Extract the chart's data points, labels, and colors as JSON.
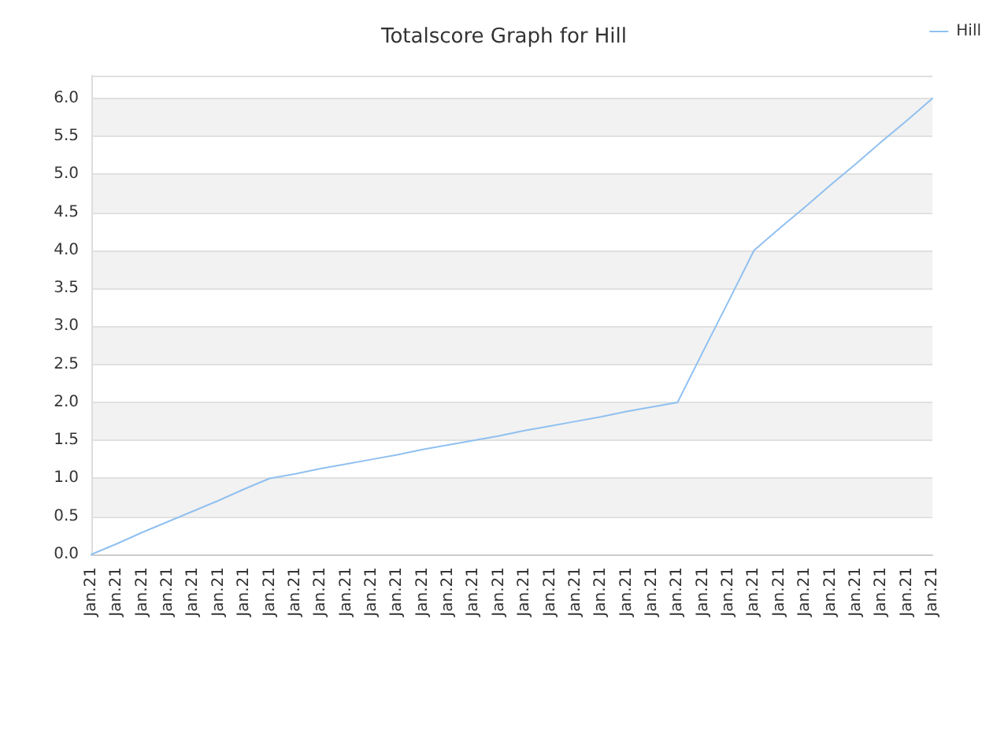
{
  "chart_data": {
    "type": "line",
    "title": "Totalscore Graph for Hill",
    "categories": [
      "Jan.21",
      "Jan.21",
      "Jan.21",
      "Jan.21",
      "Jan.21",
      "Jan.21",
      "Jan.21",
      "Jan.21",
      "Jan.21",
      "Jan.21",
      "Jan.21",
      "Jan.21",
      "Jan.21",
      "Jan.21",
      "Jan.21",
      "Jan.21",
      "Jan.21",
      "Jan.21",
      "Jan.21",
      "Jan.21",
      "Jan.21",
      "Jan.21",
      "Jan.21",
      "Jan.21",
      "Jan.21",
      "Jan.21",
      "Jan.21",
      "Jan.21",
      "Jan.21",
      "Jan.21",
      "Jan.21",
      "Jan.21",
      "Jan.21",
      "Jan.21"
    ],
    "series": [
      {
        "name": "Hill",
        "color": "#90c0f0",
        "values": [
          0,
          0.14,
          0.29,
          0.43,
          0.57,
          0.71,
          0.86,
          1.0,
          1.06,
          1.13,
          1.19,
          1.25,
          1.31,
          1.38,
          1.44,
          1.5,
          1.56,
          1.63,
          1.69,
          1.75,
          1.81,
          1.88,
          1.94,
          2.0,
          2.67,
          3.33,
          4.0,
          4.29,
          4.57,
          4.86,
          5.14,
          5.43,
          5.71,
          6.0
        ]
      }
    ],
    "ylim": [
      0,
      6.3
    ],
    "yticks": [
      {
        "value": 0,
        "label": "0.0"
      },
      0.5,
      {
        "value": 1,
        "label": "1.0"
      },
      1.5,
      {
        "value": 2,
        "label": "2.0"
      },
      2.5,
      {
        "value": 3,
        "label": "3.0"
      },
      3.5,
      {
        "value": 4,
        "label": "4.0"
      },
      4.5,
      {
        "value": 5,
        "label": "5.0"
      },
      5.5,
      {
        "value": 6,
        "label": "6.0"
      }
    ],
    "grid": "y",
    "legend": "top right",
    "marker": "none",
    "line_style": "solid"
  }
}
